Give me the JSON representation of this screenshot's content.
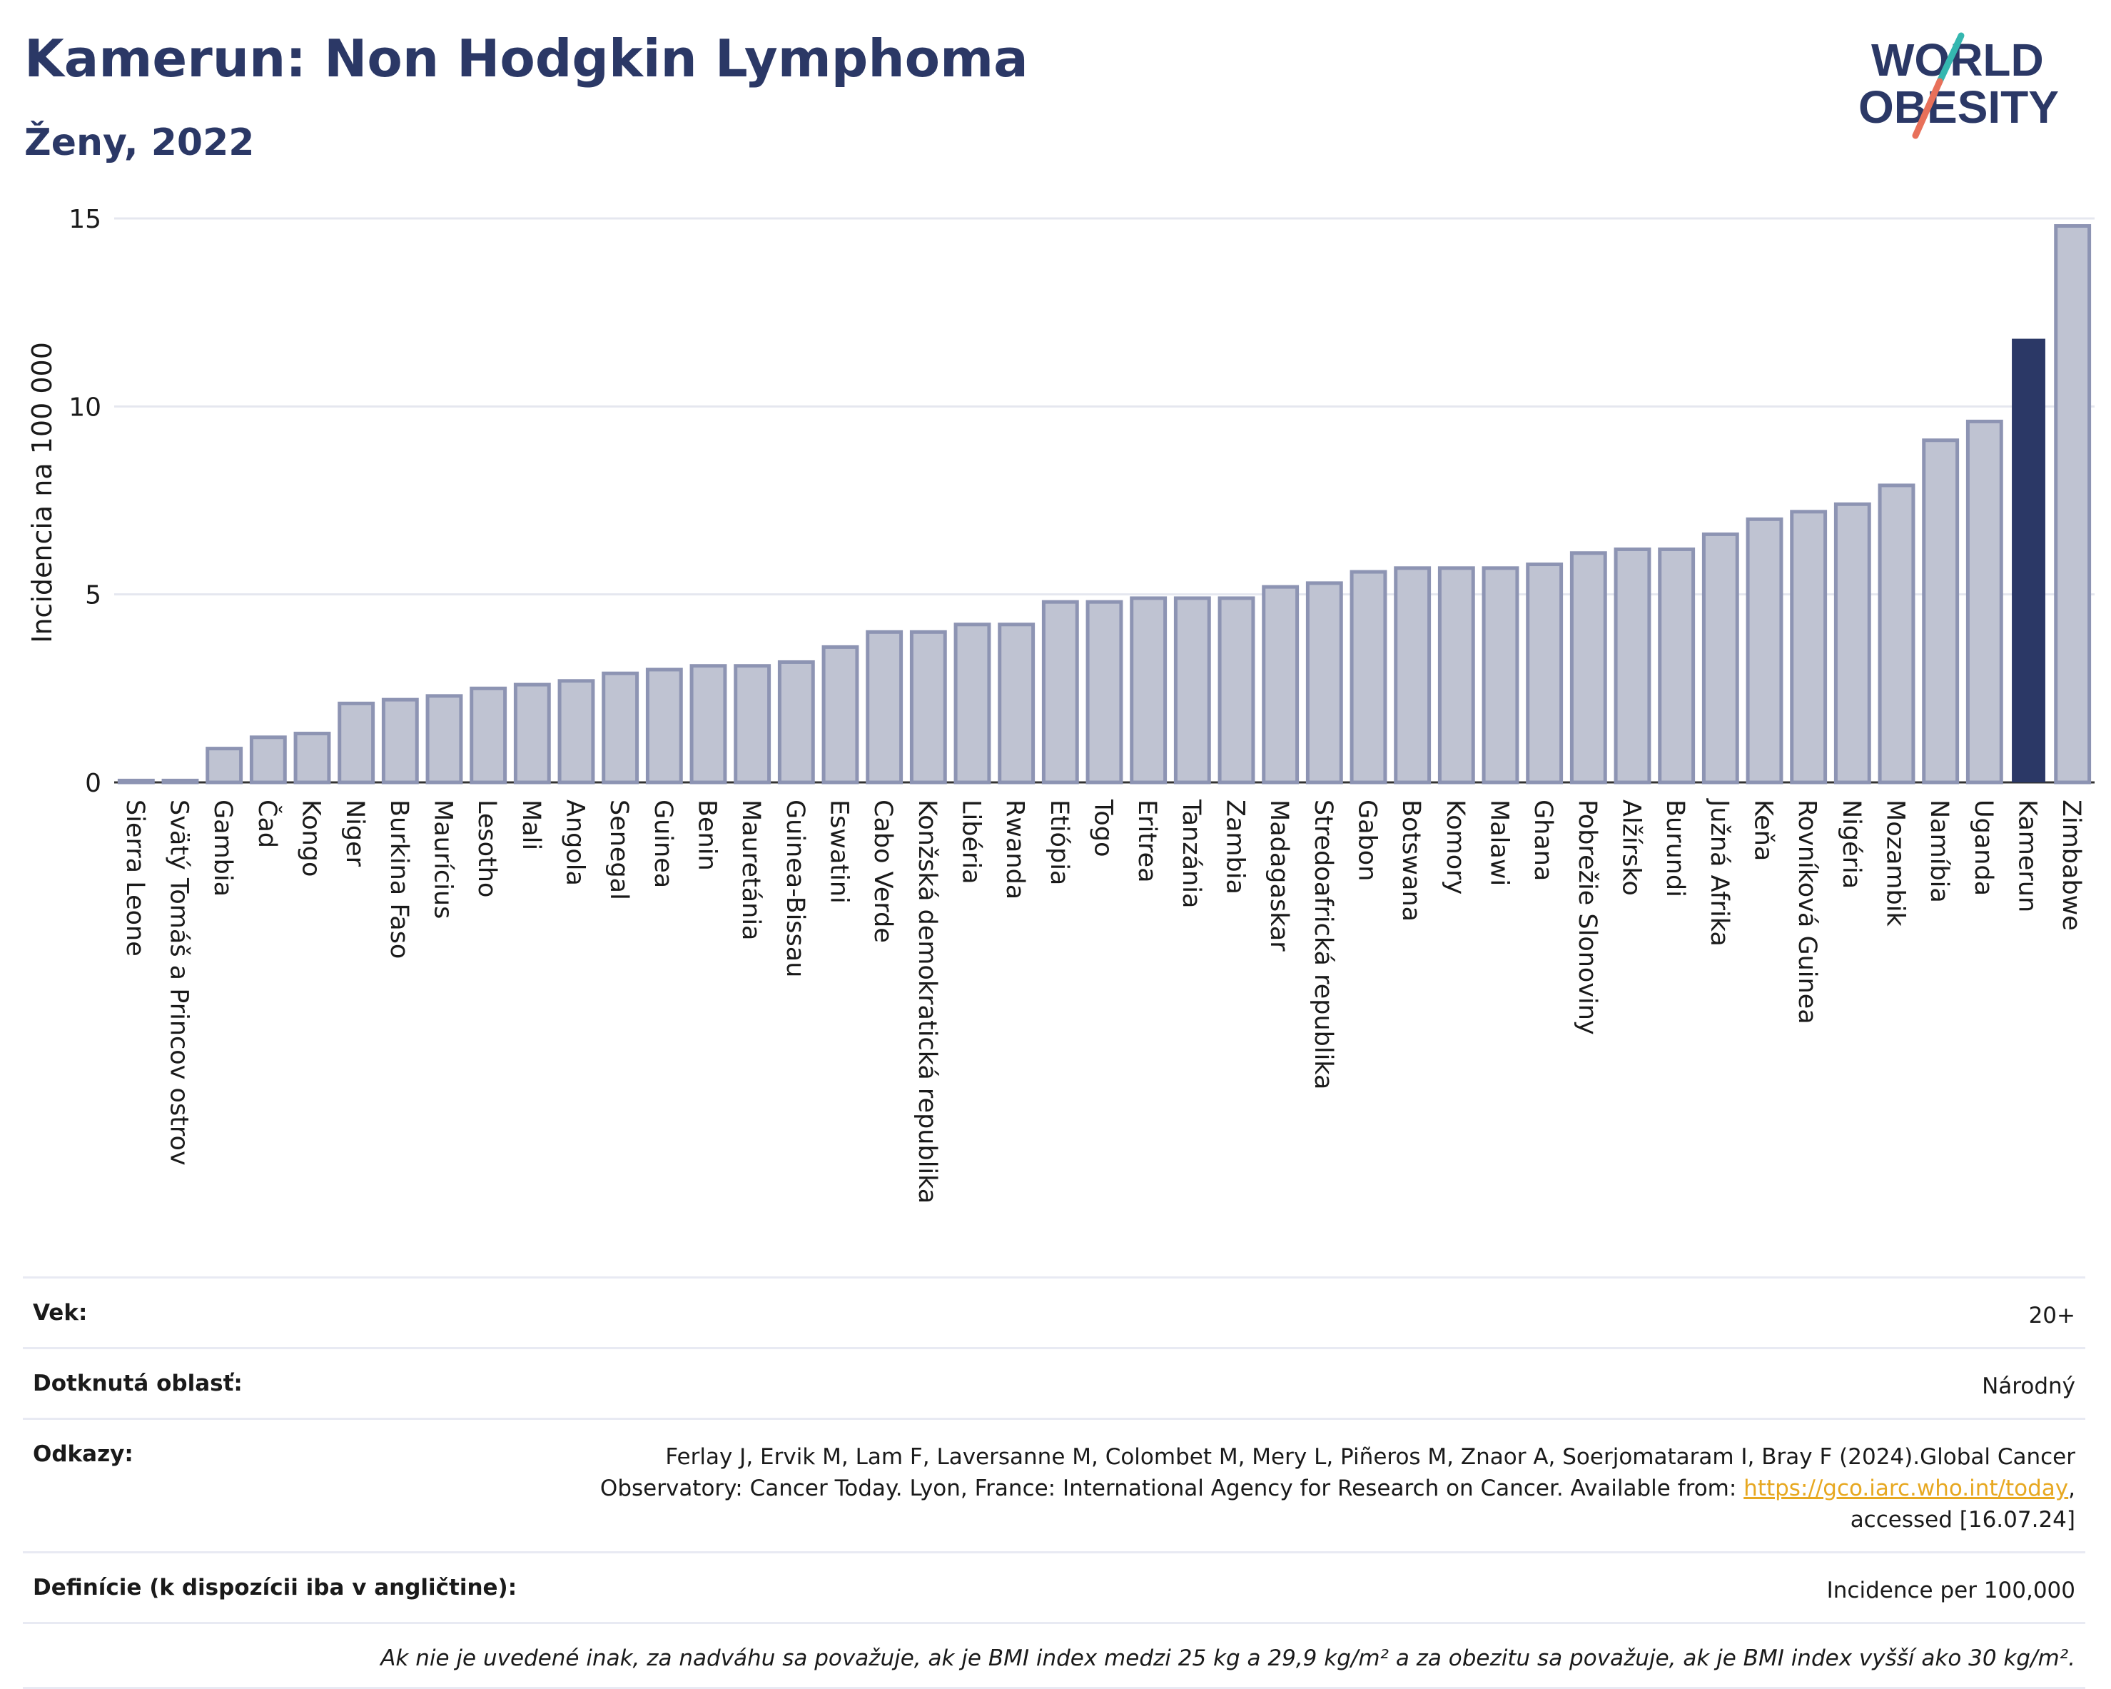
{
  "header": {
    "title": "Kamerun: Non Hodgkin Lymphoma",
    "subtitle": "Ženy, 2022"
  },
  "logo": {
    "line1": "WORLD",
    "line2": "OBESITY"
  },
  "chart_data": {
    "type": "bar",
    "ylabel": "Incidencia na 100 000",
    "xlabel": "",
    "ylim": [
      0,
      15
    ],
    "yticks": [
      0,
      5,
      10,
      15
    ],
    "grid": true,
    "highlight": "Kamerun",
    "colors": {
      "bar_fill": "#bfc3d2",
      "bar_stroke": "#8d94b3",
      "highlight": "#2b3866",
      "grid": "#e5e7ef"
    },
    "categories": [
      "Sierra Leone",
      "Svätý Tomáš a Princov ostrov",
      "Gambia",
      "Čad",
      "Kongo",
      "Niger",
      "Burkina Faso",
      "Maurícius",
      "Lesotho",
      "Mali",
      "Angola",
      "Senegal",
      "Guinea",
      "Benin",
      "Mauretánia",
      "Guinea-Bissau",
      "Eswatini",
      "Cabo Verde",
      "Konžská demokratická republika",
      "Libéria",
      "Rwanda",
      "Etiópia",
      "Togo",
      "Eritrea",
      "Tanzánia",
      "Zambia",
      "Madagaskar",
      "Stredoafrická republika",
      "Gabon",
      "Botswana",
      "Komory",
      "Malawi",
      "Ghana",
      "Pobrežie Slonoviny",
      "Alžírsko",
      "Burundi",
      "Južná Afrika",
      "Keňa",
      "Rovníková Guinea",
      "Nigéria",
      "Mozambik",
      "Namíbia",
      "Uganda",
      "Kamerun",
      "Zimbabwe"
    ],
    "values": [
      0.05,
      0.05,
      0.9,
      1.2,
      1.3,
      2.1,
      2.2,
      2.3,
      2.5,
      2.6,
      2.7,
      2.9,
      3.0,
      3.1,
      3.1,
      3.2,
      3.6,
      4.0,
      4.0,
      4.2,
      4.2,
      4.8,
      4.8,
      4.9,
      4.9,
      4.9,
      5.2,
      5.3,
      5.6,
      5.7,
      5.7,
      5.7,
      5.8,
      6.1,
      6.2,
      6.2,
      6.6,
      7.0,
      7.2,
      7.4,
      7.9,
      9.1,
      9.6,
      11.8,
      14.8
    ]
  },
  "meta": {
    "age_label": "Vek:",
    "age_value": "20+",
    "area_label": "Dotknutá oblasť:",
    "area_value": "Národný",
    "refs_label": "Odkazy:",
    "refs_line1": "Ferlay J, Ervik M, Lam F, Laversanne M, Colombet M, Mery L, Piñeros M, Znaor A, Soerjomataram I, Bray F (2024).Global Cancer",
    "refs_line2_pre": "Observatory: Cancer Today. Lyon, France: International Agency for Research on Cancer. Available from: ",
    "refs_link": "https://gco.iarc.who.int/today",
    "refs_line2_post": ",",
    "refs_line3": "accessed [16.07.24]",
    "def_label": "Definície (k dispozícii iba v angličtine):",
    "def_value": "Incidence per 100,000",
    "note": "Ak nie je uvedené inak, za nadváhu sa považuje, ak je BMI index medzi 25 kg a 29,9 kg/m² a za obezitu sa považuje, ak je BMI index vyšší ako 30 kg/m²."
  }
}
